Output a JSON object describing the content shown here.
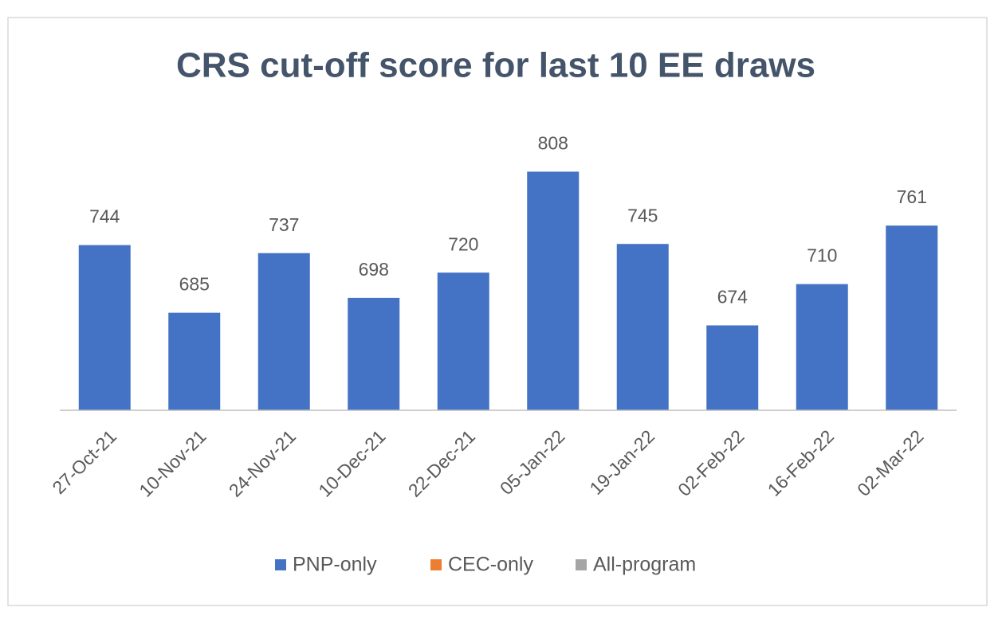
{
  "chart_data": {
    "type": "bar",
    "title": "CRS cut-off score for last 10 EE draws",
    "categories": [
      "27-Oct-21",
      "10-Nov-21",
      "24-Nov-21",
      "10-Dec-21",
      "22-Dec-21",
      "05-Jan-22",
      "19-Jan-22",
      "02-Feb-22",
      "16-Feb-22",
      "02-Mar-22"
    ],
    "series": [
      {
        "name": "PNP-only",
        "color": "#4472c4",
        "values": [
          744,
          685,
          737,
          698,
          720,
          808,
          745,
          674,
          710,
          761
        ]
      },
      {
        "name": "CEC-only",
        "color": "#ed7d31",
        "values": [
          null,
          null,
          null,
          null,
          null,
          null,
          null,
          null,
          null,
          null
        ]
      },
      {
        "name": "All-program",
        "color": "#a5a5a5",
        "values": [
          null,
          null,
          null,
          null,
          null,
          null,
          null,
          null,
          null,
          null
        ]
      }
    ],
    "ylim": [
      600,
      850
    ],
    "legend": "bottom"
  }
}
